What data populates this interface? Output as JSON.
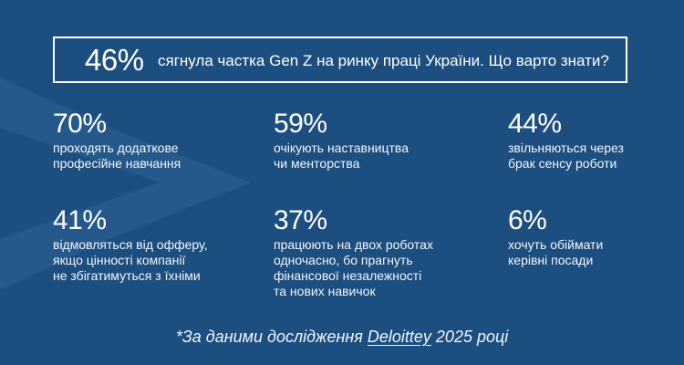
{
  "headline": {
    "value": "46%",
    "text": "сягнула частка Gen Z на ринку праці України. Що варто знати?"
  },
  "stats": [
    {
      "value": "70%",
      "label": "проходять додаткове\nпрофесійне навчання"
    },
    {
      "value": "59%",
      "label": "очікують наставництва\nчи менторства"
    },
    {
      "value": "44%",
      "label": "звільняються через\nбрак сенсу роботи"
    },
    {
      "value": "41%",
      "label": "відмовляться від офферу,\nякщо цінності компанії\nне збігатимуться з їхніми"
    },
    {
      "value": "37%",
      "label": "працюють на двох роботах\nодночасно, бо прагнуть\nфінансової незалежності\nта нових навичок"
    },
    {
      "value": "6%",
      "label": "хочуть обіймати\nкерівні посади"
    }
  ],
  "footnote": {
    "prefix": "*За даними дослідження ",
    "source": "Deloittey",
    "suffix": " 2025 році"
  },
  "colors": {
    "background": "#1d4e80",
    "chevron": "#2a5d8f",
    "text": "#ffffff"
  },
  "decor": {
    "chevron": "chevron-decoration"
  }
}
